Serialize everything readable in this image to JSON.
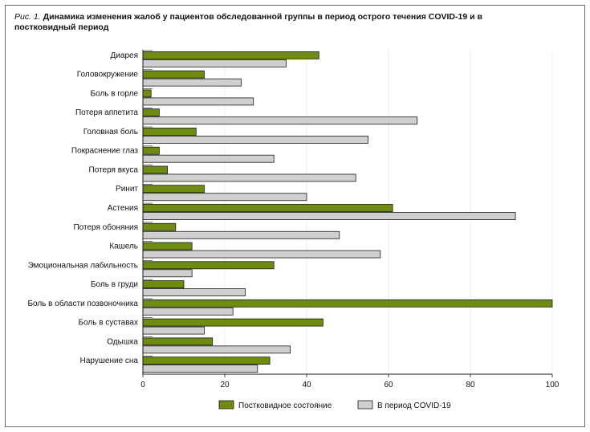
{
  "chart_data": {
    "type": "bar",
    "orientation": "horizontal",
    "title_prefix": "Рис. 1.",
    "title": "Динамика изменения жалоб у пациентов обследованной группы в период острого течения COVID-19 и в постковидный период",
    "xlabel": "",
    "ylabel": "",
    "xlim": [
      0,
      100
    ],
    "xticks": [
      "0",
      "20",
      "40",
      "60",
      "80",
      "100"
    ],
    "categories": [
      "Диарея",
      "Головокружение",
      "Боль в горле",
      "Потеря аппетита",
      "Головная боль",
      "Покраснение глаз",
      "Потеря вкуса",
      "Ринит",
      "Астения",
      "Потеря обоняния",
      "Кашель",
      "Эмоциональная лабильность",
      "Боль в груди",
      "Боль в области позвоночника",
      "Боль в суставах",
      "Одышка",
      "Нарушение сна"
    ],
    "series": [
      {
        "name": "Постковидное состояние",
        "color": "#6e8c10",
        "values": [
          43,
          15,
          2,
          4,
          13,
          4,
          6,
          15,
          61,
          8,
          12,
          32,
          10,
          100,
          44,
          17,
          31
        ]
      },
      {
        "name": "В период COVID-19",
        "color": "#cfcfcf",
        "values": [
          35,
          24,
          27,
          67,
          55,
          32,
          52,
          40,
          91,
          48,
          58,
          12,
          25,
          22,
          15,
          36,
          28
        ]
      }
    ],
    "legend_position": "bottom"
  }
}
